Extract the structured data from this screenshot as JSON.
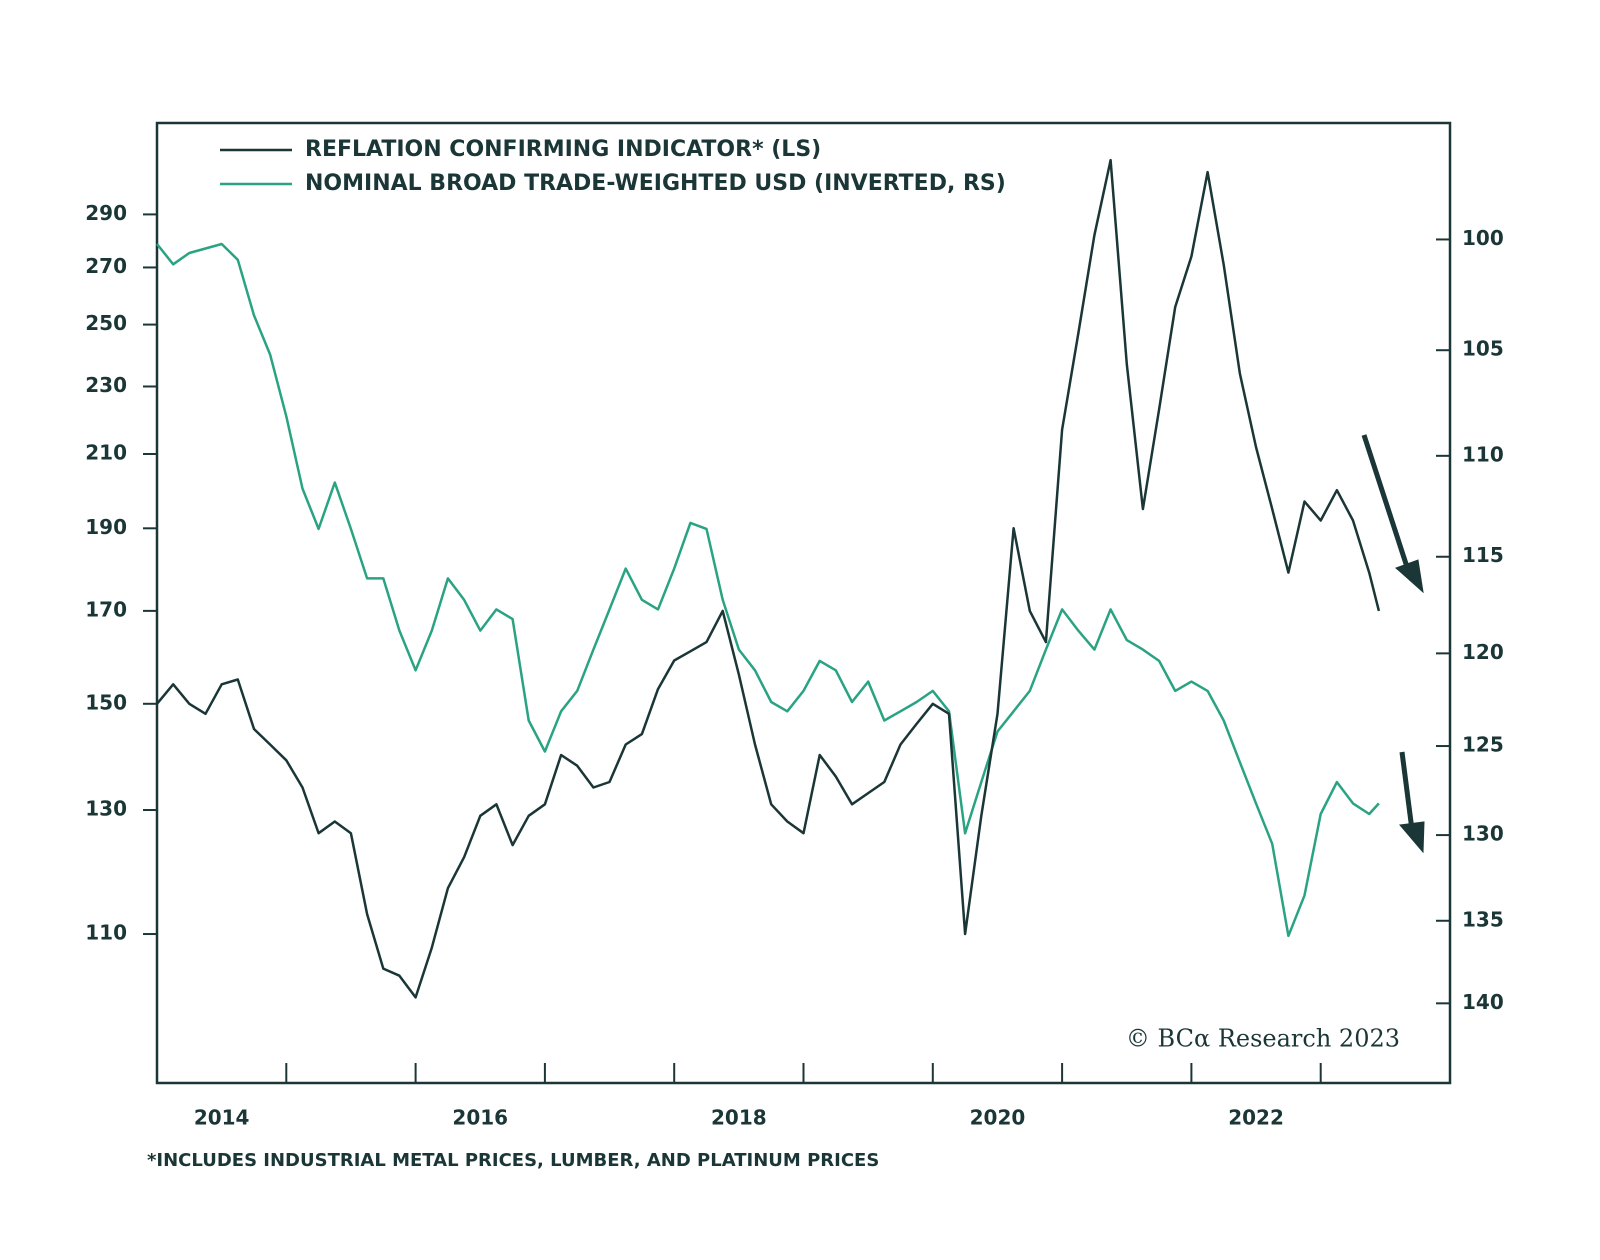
{
  "chart_data": {
    "type": "line",
    "footnote": "*INCLUDES INDUSTRIAL METAL PRICES, LUMBER, AND PLATINUM PRICES",
    "source": "© BCα Research 2023",
    "x": [
      2014,
      2014.125,
      2014.25,
      2014.375,
      2014.5,
      2014.625,
      2014.75,
      2014.875,
      2015,
      2015.125,
      2015.25,
      2015.375,
      2015.5,
      2015.625,
      2015.75,
      2015.875,
      2016,
      2016.125,
      2016.25,
      2016.375,
      2016.5,
      2016.625,
      2016.75,
      2016.875,
      2017,
      2017.125,
      2017.25,
      2017.375,
      2017.5,
      2017.625,
      2017.75,
      2017.875,
      2018,
      2018.125,
      2018.25,
      2018.375,
      2018.5,
      2018.625,
      2018.75,
      2018.875,
      2019,
      2019.125,
      2019.25,
      2019.375,
      2019.5,
      2019.625,
      2019.75,
      2019.875,
      2020,
      2020.125,
      2020.25,
      2020.375,
      2020.5,
      2020.625,
      2020.75,
      2020.875,
      2021,
      2021.125,
      2021.25,
      2021.375,
      2021.5,
      2021.625,
      2021.75,
      2021.875,
      2022,
      2022.125,
      2022.25,
      2022.375,
      2022.5,
      2022.625,
      2022.75,
      2022.875,
      2023,
      2023.125,
      2023.25,
      2023.375,
      2023.45
    ],
    "series": [
      {
        "name": "REFLATION CONFIRMING INDICATOR* (LS)",
        "color": "#1b3636",
        "axis": "y",
        "values": [
          150,
          154,
          150,
          148,
          154,
          155,
          145,
          142,
          139,
          134,
          126,
          128,
          126,
          113,
          105,
          104,
          101,
          108,
          117,
          122,
          129,
          131,
          124,
          129,
          131,
          140,
          138,
          134,
          135,
          142,
          144,
          153,
          159,
          161,
          163,
          170,
          156,
          142,
          131,
          128,
          126,
          140,
          136,
          131,
          133,
          135,
          142,
          146,
          150,
          148,
          110,
          129,
          148,
          190,
          170,
          163,
          217,
          247,
          282,
          312,
          237,
          195,
          223,
          256,
          274,
          307,
          271,
          234,
          212,
          195,
          179,
          197,
          192,
          200,
          192,
          179,
          170
        ]
      },
      {
        "name": "NOMINAL BROAD TRADE-WEIGHTED USD (INVERTED, RS)",
        "color": "#2aa383",
        "axis": "y2",
        "values": [
          100.2,
          101.1,
          100.6,
          100.4,
          100.2,
          100.9,
          103.4,
          105.2,
          108.1,
          111.6,
          113.6,
          111.3,
          113.6,
          116.1,
          116.1,
          118.8,
          120.9,
          118.8,
          116.1,
          117.2,
          118.8,
          117.7,
          118.2,
          123.6,
          125.3,
          123.1,
          122,
          119.8,
          117.7,
          115.6,
          117.2,
          117.7,
          115.6,
          113.3,
          113.6,
          117.2,
          119.8,
          120.9,
          122.6,
          123.1,
          122,
          120.4,
          120.9,
          122.6,
          121.5,
          123.6,
          123.1,
          122.6,
          122,
          123.1,
          129.9,
          127,
          124.2,
          123.1,
          122,
          119.8,
          117.7,
          118.8,
          119.8,
          117.7,
          119.3,
          119.8,
          120.4,
          122,
          121.5,
          122,
          123.6,
          125.9,
          128.2,
          130.5,
          135.9,
          133.5,
          128.8,
          127,
          128.2,
          128.8,
          128.2
        ]
      }
    ],
    "xlim": [
      2014,
      2024
    ],
    "xticks": [
      {
        "value": 2014.5,
        "label": "2014"
      },
      {
        "value": 2016.5,
        "label": "2016"
      },
      {
        "value": 2018.5,
        "label": "2018"
      },
      {
        "value": 2020.5,
        "label": "2020"
      },
      {
        "value": 2022.5,
        "label": "2022"
      }
    ],
    "xminor_ticks": [
      2015,
      2016,
      2017,
      2018,
      2019,
      2020,
      2021,
      2022,
      2023
    ],
    "ylim": [
      90,
      328
    ],
    "yticks": [
      110,
      130,
      150,
      170,
      190,
      210,
      230,
      250,
      270,
      290
    ],
    "ylog": true,
    "y2lim": [
      95,
      145
    ],
    "y2ticks": [
      100,
      105,
      110,
      115,
      120,
      125,
      130,
      135,
      140
    ],
    "y2log": true,
    "y2_inverted": true,
    "legend": "upper left",
    "grid": false
  }
}
